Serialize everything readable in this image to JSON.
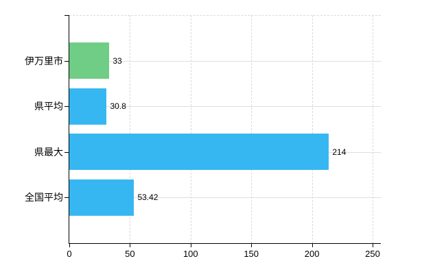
{
  "chart_data": {
    "type": "bar",
    "orientation": "horizontal",
    "categories": [
      "伊万里市",
      "県平均",
      "県最大",
      "全国平均"
    ],
    "values": [
      33,
      30.8,
      214,
      53.42
    ],
    "value_labels": [
      "33",
      "30.8",
      "214",
      "53.42"
    ],
    "bar_colors": [
      "#6fcd85",
      "#36b7f1",
      "#36b7f1",
      "#36b7f1"
    ],
    "xlim": [
      0,
      250
    ],
    "x_ticks": [
      0,
      50,
      100,
      150,
      200,
      250
    ],
    "x_tick_labels": [
      "0",
      "50",
      "100",
      "150",
      "200",
      "250"
    ],
    "grid": true,
    "legend": false,
    "title": "",
    "xlabel": "",
    "ylabel": ""
  },
  "colors": {
    "background": "#ffffff",
    "axis": "#000000",
    "grid": "#d9d9d9",
    "grid_horizontal": "#dedede",
    "text": "#000000"
  }
}
